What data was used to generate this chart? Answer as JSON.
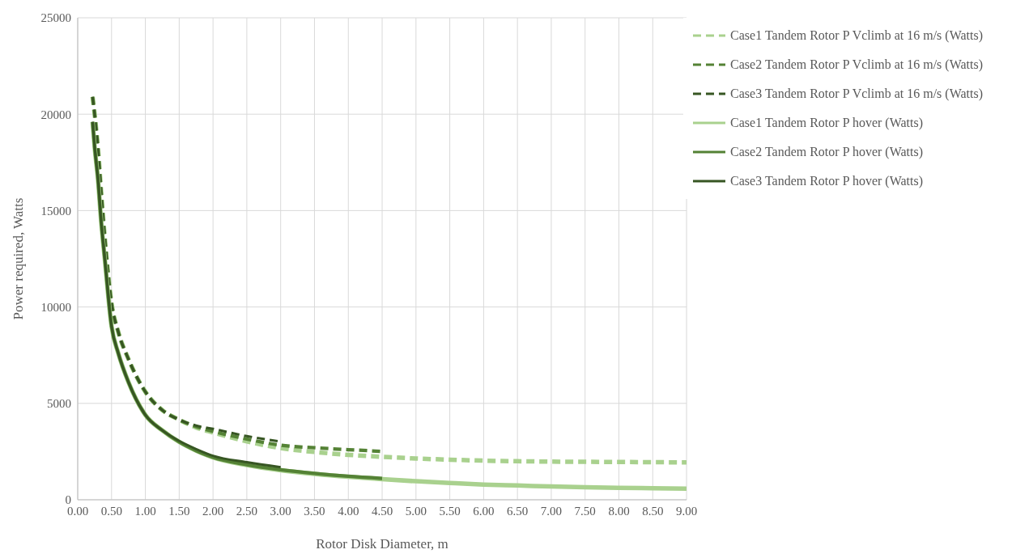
{
  "chart_data": {
    "type": "line",
    "xlabel": "Rotor Disk Diameter, m",
    "ylabel": "Power required, Watts",
    "xlim": [
      0,
      9
    ],
    "ylim": [
      0,
      25000
    ],
    "xticks": [
      {
        "value": 0,
        "label": "0.00"
      },
      {
        "value": 0.5,
        "label": "0.50"
      },
      {
        "value": 1,
        "label": "1.00"
      },
      {
        "value": 1.5,
        "label": "1.50"
      },
      {
        "value": 2,
        "label": "2.00"
      },
      {
        "value": 2.5,
        "label": "2.50"
      },
      {
        "value": 3,
        "label": "3.00"
      },
      {
        "value": 3.5,
        "label": "3.50"
      },
      {
        "value": 4,
        "label": "4.00"
      },
      {
        "value": 4.5,
        "label": "4.50"
      },
      {
        "value": 5,
        "label": "5.00"
      },
      {
        "value": 5.5,
        "label": "5.50"
      },
      {
        "value": 6,
        "label": "6.00"
      },
      {
        "value": 6.5,
        "label": "6.50"
      },
      {
        "value": 7,
        "label": "7.00"
      },
      {
        "value": 7.5,
        "label": "7.50"
      },
      {
        "value": 8,
        "label": "8.00"
      },
      {
        "value": 8.5,
        "label": "8.50"
      },
      {
        "value": 9,
        "label": "9.00"
      }
    ],
    "yticks": [
      0,
      5000,
      10000,
      15000,
      20000,
      25000
    ],
    "grid": true,
    "legend": "top right",
    "marker": "none",
    "series": [
      {
        "name": "Case1 Tandem Rotor P Vclimb at 16 m/s (Watts)",
        "color": "#a9d18e",
        "line_style": "dashed",
        "x": [
          0.22,
          0.25,
          0.3,
          0.35,
          0.4,
          0.5,
          0.6,
          0.75,
          1,
          1.25,
          1.5,
          1.75,
          2,
          2.5,
          3,
          3.5,
          4,
          4.5,
          5,
          5.5,
          6,
          6.5,
          7,
          7.5,
          8,
          8.5,
          9
        ],
        "values": [
          20900,
          20000,
          18200,
          15800,
          13600,
          10200,
          8700,
          7300,
          5600,
          4650,
          4150,
          3750,
          3490,
          3030,
          2680,
          2480,
          2330,
          2230,
          2140,
          2080,
          2030,
          2000,
          1980,
          1970,
          1960,
          1950,
          1940
        ]
      },
      {
        "name": "Case2 Tandem Rotor P Vclimb at 16 m/s (Watts)",
        "color": "#548235",
        "line_style": "dashed",
        "x": [
          0.22,
          0.25,
          0.3,
          0.35,
          0.4,
          0.5,
          0.6,
          0.75,
          1,
          1.25,
          1.5,
          1.75,
          2,
          2.5,
          3,
          3.5,
          4,
          4.5
        ],
        "values": [
          20900,
          20000,
          18200,
          15800,
          13600,
          10200,
          8700,
          7300,
          5600,
          4650,
          4150,
          3800,
          3550,
          3150,
          2830,
          2700,
          2600,
          2510
        ]
      },
      {
        "name": "Case3 Tandem Rotor P Vclimb at 16 m/s (Watts)",
        "color": "#375623",
        "line_style": "dashed",
        "x": [
          0.22,
          0.25,
          0.3,
          0.35,
          0.4,
          0.5,
          0.6,
          0.75,
          1,
          1.25,
          1.5,
          1.75,
          2,
          2.5,
          3
        ],
        "values": [
          20900,
          20000,
          18200,
          15800,
          13600,
          10200,
          8700,
          7300,
          5600,
          4650,
          4150,
          3850,
          3680,
          3300,
          3020
        ]
      },
      {
        "name": "Case1 Tandem Rotor P hover (Watts)",
        "color": "#a9d18e",
        "line_style": "solid",
        "x": [
          0.22,
          0.25,
          0.3,
          0.35,
          0.4,
          0.5,
          0.6,
          0.75,
          1,
          1.25,
          1.5,
          1.75,
          2,
          2.5,
          3,
          3.5,
          4,
          4.5,
          5,
          5.5,
          6,
          6.5,
          7,
          7.5,
          8,
          8.5,
          9
        ],
        "values": [
          19600,
          18300,
          16600,
          14300,
          12500,
          9000,
          7600,
          6100,
          4400,
          3600,
          3000,
          2550,
          2200,
          1800,
          1530,
          1340,
          1190,
          1070,
          960,
          870,
          790,
          740,
          690,
          650,
          620,
          600,
          580
        ]
      },
      {
        "name": "Case2 Tandem Rotor P hover (Watts)",
        "color": "#548235",
        "line_style": "solid",
        "x": [
          0.22,
          0.25,
          0.3,
          0.35,
          0.4,
          0.5,
          0.6,
          0.75,
          1,
          1.25,
          1.5,
          1.75,
          2,
          2.5,
          3,
          3.5,
          4,
          4.5
        ],
        "values": [
          19600,
          18300,
          16600,
          14300,
          12500,
          9000,
          7600,
          6100,
          4400,
          3600,
          3000,
          2550,
          2200,
          1820,
          1560,
          1370,
          1220,
          1110
        ]
      },
      {
        "name": "Case3 Tandem Rotor P hover (Watts)",
        "color": "#375623",
        "line_style": "solid",
        "x": [
          0.22,
          0.25,
          0.3,
          0.35,
          0.4,
          0.5,
          0.6,
          0.75,
          1,
          1.25,
          1.5,
          1.75,
          2,
          2.5,
          3
        ],
        "values": [
          19600,
          18300,
          16600,
          14300,
          12500,
          9000,
          7600,
          6100,
          4400,
          3600,
          3050,
          2630,
          2280,
          1950,
          1690
        ]
      }
    ]
  }
}
